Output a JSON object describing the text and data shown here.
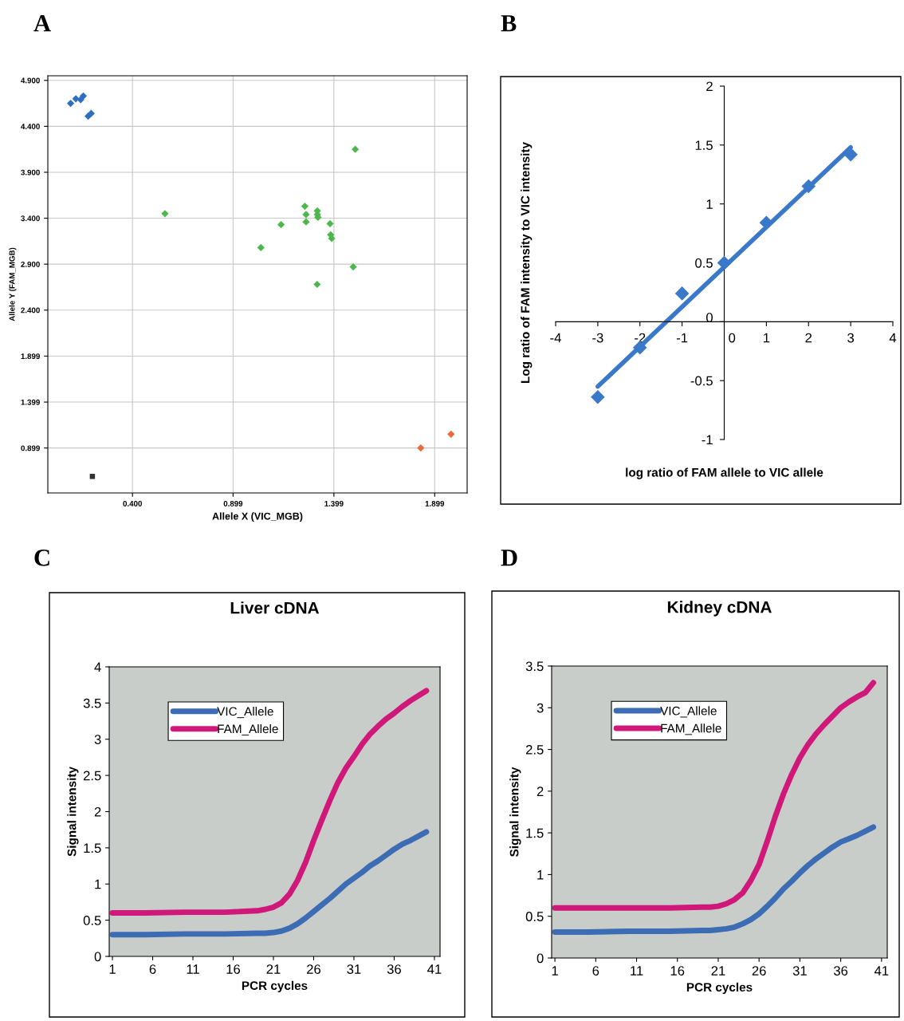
{
  "chart_data": [
    {
      "type": "scatter",
      "xlabel": "Allele X (VIC_MGB)",
      "ylabel": "Allele Y (FAM_MGB)",
      "annotations": [
        "A"
      ],
      "xlim": [
        -0.02,
        2.06
      ],
      "ylim": [
        0.41,
        4.95
      ],
      "xticks": [
        {
          "value": 0.4,
          "label": "0.400"
        },
        {
          "value": 0.899,
          "label": "0.899"
        },
        {
          "value": 1.399,
          "label": "1.399"
        },
        {
          "value": 1.899,
          "label": "1.899"
        }
      ],
      "yticks": [
        {
          "value": 0.899,
          "label": "0.899"
        },
        {
          "value": 1.399,
          "label": "1.399"
        },
        {
          "value": 1.899,
          "label": "1.899"
        },
        {
          "value": 2.4,
          "label": "2.400"
        },
        {
          "value": 2.9,
          "label": "2.900"
        },
        {
          "value": 3.4,
          "label": "3.400"
        },
        {
          "value": 3.9,
          "label": "3.900"
        },
        {
          "value": 4.4,
          "label": "4.400"
        },
        {
          "value": 4.9,
          "label": "4.900"
        }
      ],
      "grid": true,
      "marker": "diamond",
      "series": [
        {
          "color": "#2f6fc0",
          "x": [
            0.093,
            0.119,
            0.143,
            0.156,
            0.18,
            0.195
          ],
          "values": [
            4.65,
            4.7,
            4.69,
            4.73,
            4.51,
            4.54
          ]
        },
        {
          "color": "#4cb84c",
          "x": [
            1.505,
            0.561,
            1.255,
            1.261,
            1.261,
            1.317,
            1.317,
            1.32,
            1.38,
            1.383,
            1.388,
            1.137,
            1.037,
            1.495,
            1.316
          ],
          "values": [
            4.15,
            3.45,
            3.53,
            3.44,
            3.36,
            3.48,
            3.44,
            3.41,
            3.34,
            3.22,
            3.18,
            3.33,
            3.08,
            2.87,
            2.68
          ]
        },
        {
          "color": "#e86a3c",
          "x": [
            1.83,
            1.98
          ],
          "values": [
            0.9,
            1.05
          ]
        },
        {
          "color": "#333333",
          "marker": "square",
          "x": [
            0.201
          ],
          "values": [
            0.59
          ]
        }
      ]
    },
    {
      "type": "scatter",
      "xlabel": "log ratio of FAM allele to VIC allele",
      "ylabel": "Log ratio of FAM intensity to VIC intensity",
      "annotations": [
        "B"
      ],
      "xlim": [
        -4,
        4
      ],
      "ylim": [
        -1,
        2
      ],
      "xticks": [
        -4,
        -3,
        -2,
        -1,
        0,
        1,
        2,
        3,
        4
      ],
      "yticks": [
        -1,
        -0.5,
        0,
        0.5,
        1,
        1.5,
        2
      ],
      "grid": false,
      "marker": "diamond",
      "series": [
        {
          "color": "#3a78c9",
          "x": [
            -3,
            -2,
            -1,
            0,
            1,
            2,
            3
          ],
          "values": [
            -0.64,
            -0.22,
            0.24,
            0.5,
            0.84,
            1.15,
            1.42
          ]
        },
        {
          "type": "line",
          "color": "#3a78c9",
          "marker": "none",
          "x": [
            -3,
            3
          ],
          "values": [
            -0.55,
            1.48
          ]
        }
      ]
    },
    {
      "type": "line",
      "title": "Liver cDNA",
      "xlabel": "PCR cycles",
      "ylabel": "Signal intensity",
      "annotations": [
        "C"
      ],
      "x": [
        1,
        5,
        10,
        15,
        19,
        20,
        21,
        22,
        23,
        24,
        25,
        26,
        27,
        28,
        29,
        30,
        31,
        32,
        33,
        34,
        35,
        36,
        37,
        38,
        39,
        40
      ],
      "xlim": [
        0.6,
        41.7
      ],
      "ylim": [
        0,
        4
      ],
      "xticks": [
        1,
        6,
        11,
        16,
        21,
        26,
        31,
        36,
        41
      ],
      "yticks": [
        0,
        0.5,
        1,
        1.5,
        2,
        2.5,
        3,
        3.5,
        4
      ],
      "grid": false,
      "legend": "top left",
      "series": [
        {
          "name": "VIC_Allele",
          "color": "#3b6cb4",
          "values": [
            0.3,
            0.3,
            0.31,
            0.31,
            0.32,
            0.32,
            0.33,
            0.35,
            0.39,
            0.45,
            0.53,
            0.62,
            0.71,
            0.8,
            0.9,
            1.0,
            1.08,
            1.16,
            1.25,
            1.32,
            1.4,
            1.48,
            1.55,
            1.6,
            1.66,
            1.72
          ]
        },
        {
          "name": "FAM_Allele",
          "color": "#d0187a",
          "values": [
            0.6,
            0.6,
            0.61,
            0.61,
            0.63,
            0.65,
            0.68,
            0.74,
            0.86,
            1.05,
            1.3,
            1.6,
            1.88,
            2.15,
            2.4,
            2.6,
            2.76,
            2.93,
            3.07,
            3.18,
            3.28,
            3.36,
            3.45,
            3.53,
            3.6,
            3.67
          ]
        }
      ]
    },
    {
      "type": "line",
      "title": "Kidney cDNA",
      "xlabel": "PCR cycles",
      "ylabel": "Signal intensity",
      "annotations": [
        "D"
      ],
      "x": [
        1,
        5,
        10,
        15,
        19,
        20,
        21,
        22,
        23,
        24,
        25,
        26,
        27,
        28,
        29,
        30,
        31,
        32,
        33,
        34,
        35,
        36,
        37,
        38,
        39,
        40
      ],
      "xlim": [
        0.6,
        41.7
      ],
      "ylim": [
        0,
        3.5
      ],
      "xticks": [
        1,
        6,
        11,
        16,
        21,
        26,
        31,
        36,
        41
      ],
      "yticks": [
        0,
        0.5,
        1,
        1.5,
        2,
        2.5,
        3,
        3.5
      ],
      "grid": false,
      "legend": "top left",
      "series": [
        {
          "name": "VIC_Allele",
          "color": "#3b6cb4",
          "values": [
            0.31,
            0.31,
            0.32,
            0.32,
            0.33,
            0.33,
            0.34,
            0.35,
            0.37,
            0.41,
            0.46,
            0.53,
            0.62,
            0.72,
            0.83,
            0.92,
            1.02,
            1.11,
            1.19,
            1.26,
            1.33,
            1.39,
            1.43,
            1.47,
            1.52,
            1.57
          ]
        },
        {
          "name": "FAM_Allele",
          "color": "#d0187a",
          "values": [
            0.6,
            0.6,
            0.6,
            0.6,
            0.61,
            0.61,
            0.62,
            0.65,
            0.7,
            0.78,
            0.93,
            1.12,
            1.4,
            1.7,
            1.97,
            2.2,
            2.4,
            2.56,
            2.69,
            2.8,
            2.9,
            3.0,
            3.07,
            3.13,
            3.18,
            3.3
          ]
        }
      ]
    }
  ]
}
